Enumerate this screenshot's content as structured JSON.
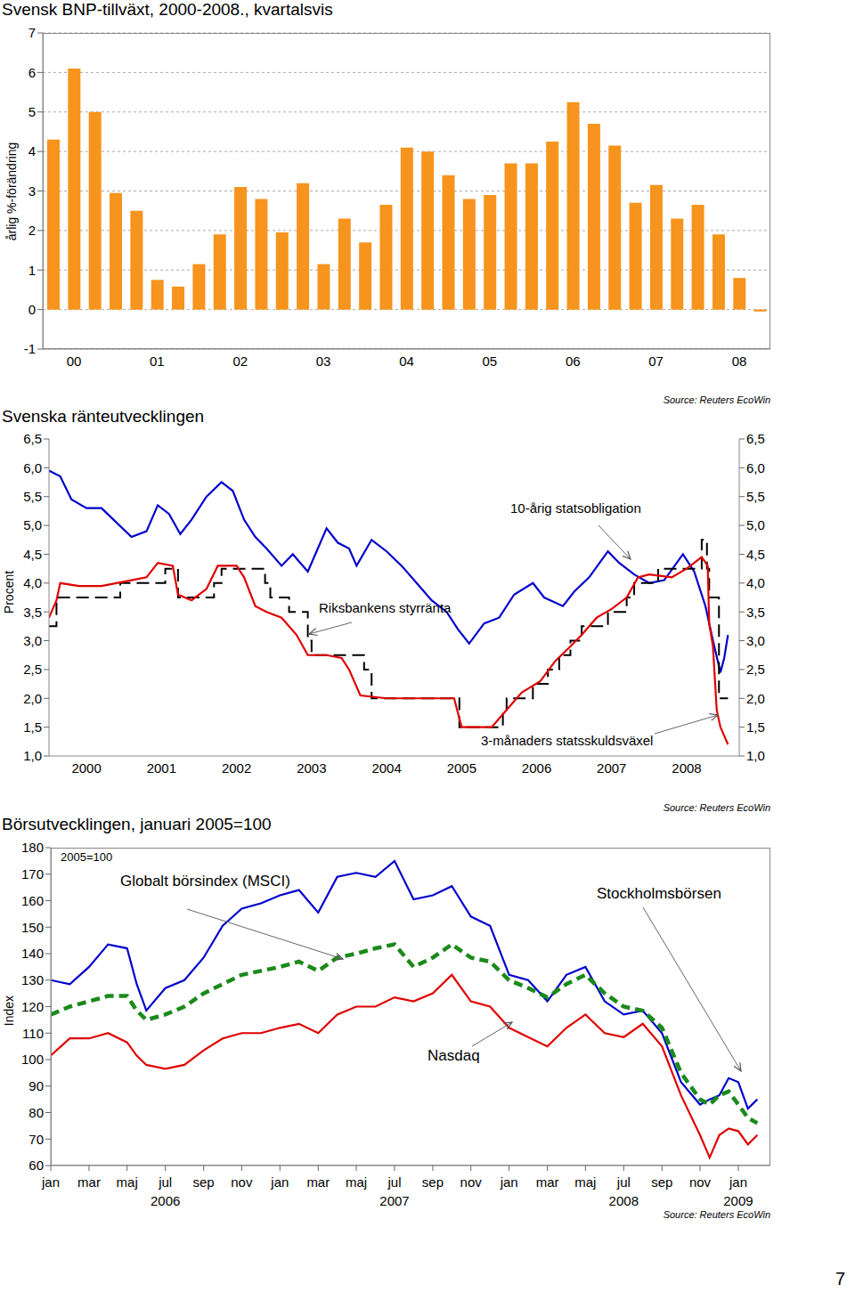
{
  "chart_data": [
    {
      "type": "bar",
      "title": "Svensk BNP-tillväxt, 2000-2008., kvartalsvis",
      "y_label": "årlig %-förändring",
      "source": "Source: Reuters EcoWin",
      "categories": [
        null,
        "00",
        null,
        null,
        null,
        "01",
        null,
        null,
        null,
        "02",
        null,
        null,
        null,
        "03",
        null,
        null,
        null,
        "04",
        null,
        null,
        null,
        "05",
        null,
        null,
        null,
        "06",
        null,
        null,
        null,
        "07",
        null,
        null,
        null,
        "08",
        null
      ],
      "values": [
        4.3,
        6.1,
        5.0,
        2.95,
        2.5,
        0.75,
        0.58,
        1.15,
        1.9,
        3.1,
        2.8,
        1.95,
        3.2,
        1.15,
        2.3,
        1.7,
        2.65,
        4.1,
        4.0,
        3.4,
        2.8,
        2.9,
        3.7,
        3.7,
        4.25,
        5.25,
        4.7,
        4.15,
        2.7,
        3.15,
        2.3,
        2.65,
        1.9,
        0.8,
        -0.05
      ],
      "color": "#f7941d",
      "ylim": [
        -1,
        7
      ],
      "yticks": [
        -1,
        0,
        1,
        2,
        3,
        4,
        5,
        6,
        7
      ],
      "grid": true
    },
    {
      "type": "line",
      "title": "Svenska ränteutvecklingen",
      "y_label": "Procent",
      "source": "Source: Reuters EcoWin",
      "xlim": [
        2000,
        2009.2
      ],
      "xticks": [
        {
          "value": 2000.5,
          "label": "2000"
        },
        {
          "value": 2001.5,
          "label": "2001"
        },
        {
          "value": 2002.5,
          "label": "2002"
        },
        {
          "value": 2003.5,
          "label": "2003"
        },
        {
          "value": 2004.5,
          "label": "2004"
        },
        {
          "value": 2005.5,
          "label": "2005"
        },
        {
          "value": 2006.5,
          "label": "2006"
        },
        {
          "value": 2007.5,
          "label": "2007"
        },
        {
          "value": 2008.5,
          "label": "2008"
        }
      ],
      "ylim": [
        1,
        6.5
      ],
      "yticks": [
        {
          "value": 1,
          "label": "1,0"
        },
        {
          "value": 1.5,
          "label": "1,5"
        },
        {
          "value": 2,
          "label": "2,0"
        },
        {
          "value": 2.5,
          "label": "2,5"
        },
        {
          "value": 3,
          "label": "3,0"
        },
        {
          "value": 3.5,
          "label": "3,5"
        },
        {
          "value": 4,
          "label": "4,0"
        },
        {
          "value": 4.5,
          "label": "4,5"
        },
        {
          "value": 5,
          "label": "5,0"
        },
        {
          "value": 5.5,
          "label": "5,5"
        },
        {
          "value": 6,
          "label": "6,0"
        },
        {
          "value": 6.5,
          "label": "6,5"
        }
      ],
      "y2lim": [
        1,
        6.5
      ],
      "y2ticks": [
        {
          "value": 1,
          "label": "1,0"
        },
        {
          "value": 1.5,
          "label": "1,5"
        },
        {
          "value": 2,
          "label": "2,0"
        },
        {
          "value": 2.5,
          "label": "2,5"
        },
        {
          "value": 3,
          "label": "3,0"
        },
        {
          "value": 3.5,
          "label": "3,5"
        },
        {
          "value": 4,
          "label": "4,0"
        },
        {
          "value": 4.5,
          "label": "4,5"
        },
        {
          "value": 5,
          "label": "5,0"
        },
        {
          "value": 5.5,
          "label": "5,5"
        },
        {
          "value": 6,
          "label": "6,0"
        },
        {
          "value": 6.5,
          "label": "6,5"
        }
      ],
      "grid": false,
      "series": [
        {
          "name": "10-årig statsobligation",
          "type": "line",
          "color": "#0000cc",
          "line_style": "solid",
          "x": [
            2000.0,
            2000.15,
            2000.3,
            2000.5,
            2000.7,
            2000.9,
            2001.1,
            2001.3,
            2001.45,
            2001.6,
            2001.75,
            2001.9,
            2002.1,
            2002.3,
            2002.45,
            2002.6,
            2002.75,
            2002.9,
            2003.1,
            2003.25,
            2003.45,
            2003.55,
            2003.7,
            2003.85,
            2004.0,
            2004.1,
            2004.3,
            2004.5,
            2004.7,
            2004.9,
            2005.1,
            2005.3,
            2005.45,
            2005.6,
            2005.8,
            2006.0,
            2006.2,
            2006.45,
            2006.6,
            2006.85,
            2007.0,
            2007.2,
            2007.45,
            2007.6,
            2007.8,
            2008.0,
            2008.2,
            2008.45,
            2008.6,
            2008.75,
            2008.85,
            2008.95,
            2009.0,
            2009.05
          ],
          "values": [
            5.95,
            5.85,
            5.45,
            5.3,
            5.3,
            5.05,
            4.8,
            4.9,
            5.35,
            5.2,
            4.85,
            5.1,
            5.5,
            5.75,
            5.6,
            5.1,
            4.8,
            4.6,
            4.3,
            4.5,
            4.2,
            4.5,
            4.95,
            4.7,
            4.6,
            4.3,
            4.75,
            4.55,
            4.3,
            4.0,
            3.7,
            3.5,
            3.2,
            2.95,
            3.3,
            3.4,
            3.8,
            4.0,
            3.75,
            3.6,
            3.85,
            4.1,
            4.55,
            4.35,
            4.15,
            4.0,
            4.05,
            4.5,
            4.2,
            3.6,
            3.0,
            2.45,
            2.7,
            3.1
          ]
        },
        {
          "name": "Riksbankens styrränta",
          "type": "step",
          "color": "#000000",
          "line_style": "dashed",
          "x": [
            2000.0,
            2000.1,
            2000.95,
            2001.55,
            2001.72,
            2002.2,
            2002.3,
            2002.88,
            2002.95,
            2003.2,
            2003.45,
            2003.5,
            2004.2,
            2004.3,
            2005.47,
            2006.05,
            2006.1,
            2006.45,
            2006.65,
            2006.8,
            2006.95,
            2007.1,
            2007.45,
            2007.7,
            2007.8,
            2008.12,
            2008.7,
            2008.77,
            2008.8,
            2008.93,
            2009.05
          ],
          "values": [
            3.25,
            3.75,
            4.0,
            4.25,
            3.75,
            4.0,
            4.25,
            4.0,
            3.75,
            3.5,
            3.0,
            2.75,
            2.5,
            2.0,
            1.5,
            1.75,
            2.0,
            2.25,
            2.5,
            2.75,
            3.0,
            3.25,
            3.5,
            3.75,
            4.0,
            4.25,
            4.75,
            4.25,
            3.75,
            2.0,
            2.0
          ]
        },
        {
          "name": "3-månaders statsskuldsväxel",
          "type": "line",
          "color": "#e00000",
          "line_style": "solid",
          "x": [
            2000.0,
            2000.1,
            2000.15,
            2000.4,
            2000.7,
            2000.9,
            2001.1,
            2001.3,
            2001.45,
            2001.65,
            2001.72,
            2001.9,
            2002.1,
            2002.25,
            2002.5,
            2002.6,
            2002.75,
            2002.9,
            2003.1,
            2003.3,
            2003.45,
            2003.7,
            2003.9,
            2004.0,
            2004.15,
            2004.5,
            2005.0,
            2005.4,
            2005.5,
            2005.9,
            2006.1,
            2006.3,
            2006.55,
            2006.75,
            2006.95,
            2007.1,
            2007.3,
            2007.5,
            2007.7,
            2007.85,
            2008.0,
            2008.3,
            2008.5,
            2008.7,
            2008.78,
            2008.8,
            2008.85,
            2008.9,
            2008.95,
            2009.0,
            2009.05
          ],
          "values": [
            3.4,
            3.7,
            4.0,
            3.95,
            3.95,
            4.0,
            4.05,
            4.1,
            4.35,
            4.3,
            3.8,
            3.7,
            3.9,
            4.3,
            4.3,
            4.1,
            3.6,
            3.5,
            3.4,
            3.1,
            2.75,
            2.75,
            2.7,
            2.5,
            2.05,
            2.0,
            2.0,
            2.0,
            1.5,
            1.5,
            1.8,
            2.1,
            2.3,
            2.65,
            2.9,
            3.1,
            3.4,
            3.55,
            3.75,
            4.1,
            4.15,
            4.1,
            4.25,
            4.45,
            4.3,
            3.3,
            2.9,
            1.8,
            1.5,
            1.35,
            1.2
          ]
        }
      ]
    },
    {
      "type": "line",
      "title": "Börsutvecklingen, januari 2005=100",
      "subtitle": "2005=100",
      "y_label": "Index",
      "source": "Source: Reuters EcoWin",
      "xlim": [
        2006,
        2009.14
      ],
      "xticks": [
        {
          "value": 2006.0,
          "label": "jan"
        },
        {
          "value": 2006.167,
          "label": "mar"
        },
        {
          "value": 2006.333,
          "label": "maj"
        },
        {
          "value": 2006.5,
          "label": "jul"
        },
        {
          "value": 2006.667,
          "label": "sep"
        },
        {
          "value": 2006.833,
          "label": "nov"
        },
        {
          "value": 2007.0,
          "label": "jan"
        },
        {
          "value": 2007.167,
          "label": "mar"
        },
        {
          "value": 2007.333,
          "label": "maj"
        },
        {
          "value": 2007.5,
          "label": "jul"
        },
        {
          "value": 2007.667,
          "label": "sep"
        },
        {
          "value": 2007.833,
          "label": "nov"
        },
        {
          "value": 2008.0,
          "label": "jan"
        },
        {
          "value": 2008.167,
          "label": "mar"
        },
        {
          "value": 2008.333,
          "label": "maj"
        },
        {
          "value": 2008.5,
          "label": "jul"
        },
        {
          "value": 2008.667,
          "label": "sep"
        },
        {
          "value": 2008.833,
          "label": "nov"
        },
        {
          "value": 2009.0,
          "label": "jan"
        }
      ],
      "x_year_labels": [
        {
          "value": 2006.5,
          "label": "2006"
        },
        {
          "value": 2007.5,
          "label": "2007"
        },
        {
          "value": 2008.5,
          "label": "2008"
        },
        {
          "value": 2009.0,
          "label": "2009"
        }
      ],
      "ylim": [
        60,
        180
      ],
      "yticks": [
        60,
        70,
        80,
        90,
        100,
        110,
        120,
        130,
        140,
        150,
        160,
        170,
        180
      ],
      "grid": false,
      "x": [
        2006.0,
        2006.083,
        2006.167,
        2006.25,
        2006.333,
        2006.375,
        2006.417,
        2006.5,
        2006.583,
        2006.667,
        2006.75,
        2006.833,
        2006.917,
        2007.0,
        2007.083,
        2007.167,
        2007.25,
        2007.333,
        2007.417,
        2007.5,
        2007.583,
        2007.667,
        2007.75,
        2007.833,
        2007.917,
        2008.0,
        2008.083,
        2008.167,
        2008.25,
        2008.333,
        2008.417,
        2008.5,
        2008.583,
        2008.667,
        2008.75,
        2008.833,
        2008.875,
        2008.917,
        2008.958,
        2009.0,
        2009.042,
        2009.083
      ],
      "series": [
        {
          "name": "Stockholmsbörsen",
          "color": "#0000cc",
          "line_style": "solid",
          "values": [
            130,
            128.5,
            135,
            143.5,
            142,
            128.5,
            118.5,
            127,
            130,
            138.5,
            150.5,
            157,
            159,
            162,
            164,
            155.5,
            169,
            170.5,
            169,
            175,
            160.5,
            162,
            165.5,
            154,
            150.5,
            132,
            130,
            122,
            132,
            135,
            122,
            117,
            118.5,
            110,
            91.5,
            83,
            85,
            86.5,
            93,
            91.5,
            81.5,
            85
          ]
        },
        {
          "name": "Globalt börsindex (MSCI)",
          "color": "#1a8a1a",
          "line_style": "dashed",
          "values": [
            117,
            120,
            122,
            124,
            124,
            118.5,
            115,
            117,
            120,
            125,
            128.5,
            132,
            133.5,
            135,
            137,
            133.5,
            138.5,
            140,
            142,
            143.5,
            135,
            138.5,
            143.5,
            138.5,
            137,
            130,
            127,
            123.5,
            128.5,
            132,
            125,
            120,
            118.5,
            112,
            95,
            85,
            83,
            86.5,
            88,
            83,
            78,
            76
          ]
        },
        {
          "name": "Nasdaq",
          "color": "#e00000",
          "line_style": "solid",
          "values": [
            101.5,
            108,
            108,
            110,
            106.5,
            101.5,
            98,
            96.5,
            98,
            103.5,
            108,
            110,
            110,
            112,
            113.5,
            110,
            117,
            120,
            120,
            123.5,
            122,
            125,
            132,
            122,
            120,
            112,
            108.5,
            105,
            112,
            117,
            110,
            108.5,
            113.5,
            105,
            86.5,
            71.5,
            63,
            71.5,
            74,
            73,
            68,
            71.5
          ]
        }
      ]
    }
  ],
  "page_number": 7
}
